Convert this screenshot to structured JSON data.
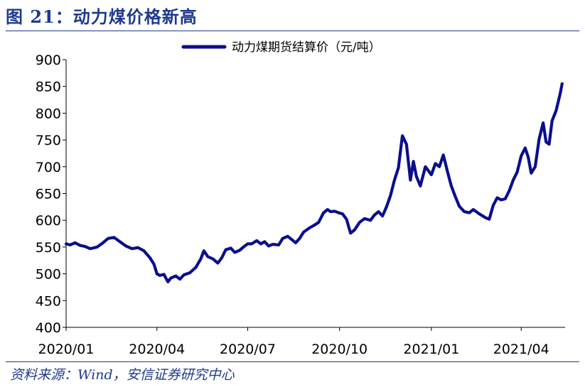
{
  "figure": {
    "title": "图 21：动力煤价格新高",
    "source": "资料来源：Wind，安信证券研究中心"
  },
  "colors": {
    "series": "#0a0f8c",
    "accent": "#1f3a8c"
  },
  "chart_data": {
    "type": "line",
    "title": "",
    "xlabel": "",
    "ylabel": "",
    "ylim": [
      400,
      900
    ],
    "yticks": [
      400,
      450,
      500,
      550,
      600,
      650,
      700,
      750,
      800,
      850,
      900
    ],
    "xlim": [
      "2020-01-01",
      "2021-05-15"
    ],
    "xticks": [
      {
        "date": "2020-01-01",
        "label": "2020/01"
      },
      {
        "date": "2020-04-01",
        "label": "2020/04"
      },
      {
        "date": "2020-07-01",
        "label": "2020/07"
      },
      {
        "date": "2020-10-01",
        "label": "2020/10"
      },
      {
        "date": "2021-01-01",
        "label": "2021/01"
      },
      {
        "date": "2021-04-01",
        "label": "2021/04"
      }
    ],
    "grid": false,
    "legend": "top",
    "series": [
      {
        "name": "动力煤期货结算价（元/吨）",
        "points": [
          [
            "2020-01-01",
            556
          ],
          [
            "2020-01-05",
            554
          ],
          [
            "2020-01-10",
            558
          ],
          [
            "2020-01-15",
            553
          ],
          [
            "2020-01-20",
            551
          ],
          [
            "2020-01-25",
            547
          ],
          [
            "2020-02-01",
            550
          ],
          [
            "2020-02-07",
            558
          ],
          [
            "2020-02-12",
            566
          ],
          [
            "2020-02-18",
            568
          ],
          [
            "2020-02-24",
            560
          ],
          [
            "2020-03-01",
            552
          ],
          [
            "2020-03-07",
            547
          ],
          [
            "2020-03-13",
            549
          ],
          [
            "2020-03-19",
            543
          ],
          [
            "2020-03-25",
            530
          ],
          [
            "2020-03-29",
            518
          ],
          [
            "2020-04-01",
            500
          ],
          [
            "2020-04-04",
            497
          ],
          [
            "2020-04-08",
            499
          ],
          [
            "2020-04-12",
            485
          ],
          [
            "2020-04-15",
            492
          ],
          [
            "2020-04-20",
            496
          ],
          [
            "2020-04-24",
            490
          ],
          [
            "2020-04-28",
            498
          ],
          [
            "2020-05-04",
            502
          ],
          [
            "2020-05-10",
            512
          ],
          [
            "2020-05-15",
            528
          ],
          [
            "2020-05-18",
            543
          ],
          [
            "2020-05-22",
            532
          ],
          [
            "2020-05-27",
            528
          ],
          [
            "2020-06-01",
            520
          ],
          [
            "2020-06-05",
            530
          ],
          [
            "2020-06-09",
            545
          ],
          [
            "2020-06-14",
            548
          ],
          [
            "2020-06-18",
            540
          ],
          [
            "2020-06-23",
            544
          ],
          [
            "2020-06-28",
            552
          ],
          [
            "2020-07-01",
            556
          ],
          [
            "2020-07-05",
            556
          ],
          [
            "2020-07-10",
            562
          ],
          [
            "2020-07-14",
            556
          ],
          [
            "2020-07-18",
            560
          ],
          [
            "2020-07-22",
            552
          ],
          [
            "2020-07-26",
            555
          ],
          [
            "2020-08-01",
            554
          ],
          [
            "2020-08-05",
            566
          ],
          [
            "2020-08-10",
            570
          ],
          [
            "2020-08-14",
            564
          ],
          [
            "2020-08-18",
            558
          ],
          [
            "2020-08-22",
            566
          ],
          [
            "2020-08-26",
            578
          ],
          [
            "2020-09-01",
            586
          ],
          [
            "2020-09-05",
            590
          ],
          [
            "2020-09-10",
            596
          ],
          [
            "2020-09-15",
            614
          ],
          [
            "2020-09-19",
            620
          ],
          [
            "2020-09-22",
            616
          ],
          [
            "2020-09-26",
            617
          ],
          [
            "2020-09-30",
            614
          ],
          [
            "2020-10-04",
            612
          ],
          [
            "2020-10-08",
            602
          ],
          [
            "2020-10-12",
            576
          ],
          [
            "2020-10-16",
            582
          ],
          [
            "2020-10-21",
            596
          ],
          [
            "2020-10-26",
            603
          ],
          [
            "2020-11-01",
            600
          ],
          [
            "2020-11-05",
            610
          ],
          [
            "2020-11-09",
            616
          ],
          [
            "2020-11-13",
            608
          ],
          [
            "2020-11-17",
            625
          ],
          [
            "2020-11-21",
            646
          ],
          [
            "2020-11-25",
            675
          ],
          [
            "2020-11-29",
            698
          ],
          [
            "2020-12-03",
            758
          ],
          [
            "2020-12-07",
            742
          ],
          [
            "2020-12-11",
            675
          ],
          [
            "2020-12-14",
            710
          ],
          [
            "2020-12-17",
            682
          ],
          [
            "2020-12-21",
            664
          ],
          [
            "2020-12-26",
            700
          ],
          [
            "2021-01-01",
            685
          ],
          [
            "2021-01-05",
            706
          ],
          [
            "2021-01-09",
            700
          ],
          [
            "2021-01-13",
            722
          ],
          [
            "2021-01-17",
            692
          ],
          [
            "2021-01-21",
            664
          ],
          [
            "2021-01-25",
            644
          ],
          [
            "2021-01-29",
            626
          ],
          [
            "2021-02-03",
            616
          ],
          [
            "2021-02-08",
            614
          ],
          [
            "2021-02-12",
            620
          ],
          [
            "2021-02-18",
            612
          ],
          [
            "2021-02-24",
            605
          ],
          [
            "2021-02-28",
            602
          ],
          [
            "2021-03-04",
            628
          ],
          [
            "2021-03-08",
            642
          ],
          [
            "2021-03-12",
            638
          ],
          [
            "2021-03-16",
            640
          ],
          [
            "2021-03-20",
            655
          ],
          [
            "2021-03-24",
            675
          ],
          [
            "2021-03-28",
            690
          ],
          [
            "2021-04-01",
            720
          ],
          [
            "2021-04-05",
            735
          ],
          [
            "2021-04-08",
            718
          ],
          [
            "2021-04-11",
            688
          ],
          [
            "2021-04-15",
            700
          ],
          [
            "2021-04-19",
            752
          ],
          [
            "2021-04-23",
            782
          ],
          [
            "2021-04-26",
            746
          ],
          [
            "2021-04-29",
            742
          ],
          [
            "2021-05-02",
            786
          ],
          [
            "2021-05-06",
            805
          ],
          [
            "2021-05-10",
            836
          ],
          [
            "2021-05-12",
            855
          ]
        ]
      }
    ]
  }
}
